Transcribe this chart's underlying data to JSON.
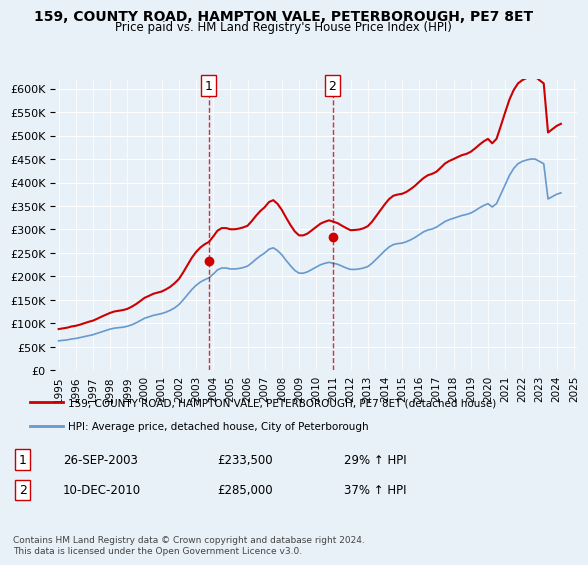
{
  "title": "159, COUNTY ROAD, HAMPTON VALE, PETERBOROUGH, PE7 8ET",
  "subtitle": "Price paid vs. HM Land Registry's House Price Index (HPI)",
  "legend_label_red": "159, COUNTY ROAD, HAMPTON VALE, PETERBOROUGH, PE7 8ET (detached house)",
  "legend_label_blue": "HPI: Average price, detached house, City of Peterborough",
  "annotation1_label": "1",
  "annotation1_date": "26-SEP-2003",
  "annotation1_price": "£233,500",
  "annotation1_hpi": "29% ↑ HPI",
  "annotation2_label": "2",
  "annotation2_date": "10-DEC-2010",
  "annotation2_price": "£285,000",
  "annotation2_hpi": "37% ↑ HPI",
  "footer": "Contains HM Land Registry data © Crown copyright and database right 2024.\nThis data is licensed under the Open Government Licence v3.0.",
  "ylim": [
    0,
    620000
  ],
  "yticks": [
    0,
    50000,
    100000,
    150000,
    200000,
    250000,
    300000,
    350000,
    400000,
    450000,
    500000,
    550000,
    600000
  ],
  "background_color": "#e8f0f8",
  "plot_background": "#e8f0f8",
  "red_color": "#cc0000",
  "blue_color": "#6699cc",
  "vline_color": "#cc0000",
  "sale1_x": 2003.74,
  "sale1_y": 233500,
  "sale2_x": 2010.95,
  "sale2_y": 285000,
  "hpi_data_x": [
    1995.0,
    1995.25,
    1995.5,
    1995.75,
    1996.0,
    1996.25,
    1996.5,
    1996.75,
    1997.0,
    1997.25,
    1997.5,
    1997.75,
    1998.0,
    1998.25,
    1998.5,
    1998.75,
    1999.0,
    1999.25,
    1999.5,
    1999.75,
    2000.0,
    2000.25,
    2000.5,
    2000.75,
    2001.0,
    2001.25,
    2001.5,
    2001.75,
    2002.0,
    2002.25,
    2002.5,
    2002.75,
    2003.0,
    2003.25,
    2003.5,
    2003.75,
    2004.0,
    2004.25,
    2004.5,
    2004.75,
    2005.0,
    2005.25,
    2005.5,
    2005.75,
    2006.0,
    2006.25,
    2006.5,
    2006.75,
    2007.0,
    2007.25,
    2007.5,
    2007.75,
    2008.0,
    2008.25,
    2008.5,
    2008.75,
    2009.0,
    2009.25,
    2009.5,
    2009.75,
    2010.0,
    2010.25,
    2010.5,
    2010.75,
    2011.0,
    2011.25,
    2011.5,
    2011.75,
    2012.0,
    2012.25,
    2012.5,
    2012.75,
    2013.0,
    2013.25,
    2013.5,
    2013.75,
    2014.0,
    2014.25,
    2014.5,
    2014.75,
    2015.0,
    2015.25,
    2015.5,
    2015.75,
    2016.0,
    2016.25,
    2016.5,
    2016.75,
    2017.0,
    2017.25,
    2017.5,
    2017.75,
    2018.0,
    2018.25,
    2018.5,
    2018.75,
    2019.0,
    2019.25,
    2019.5,
    2019.75,
    2020.0,
    2020.25,
    2020.5,
    2020.75,
    2021.0,
    2021.25,
    2021.5,
    2021.75,
    2022.0,
    2022.25,
    2022.5,
    2022.75,
    2023.0,
    2023.25,
    2023.5,
    2023.75,
    2024.0,
    2024.25
  ],
  "hpi_data_y": [
    63000,
    64000,
    65000,
    67000,
    68000,
    70000,
    72000,
    74000,
    76000,
    79000,
    82000,
    85000,
    88000,
    90000,
    91000,
    92000,
    94000,
    97000,
    101000,
    106000,
    111000,
    114000,
    117000,
    119000,
    121000,
    124000,
    128000,
    133000,
    140000,
    150000,
    161000,
    172000,
    181000,
    188000,
    193000,
    197000,
    205000,
    214000,
    218000,
    218000,
    216000,
    216000,
    217000,
    219000,
    222000,
    229000,
    237000,
    244000,
    250000,
    258000,
    261000,
    255000,
    246000,
    234000,
    223000,
    213000,
    207000,
    207000,
    210000,
    215000,
    220000,
    225000,
    228000,
    230000,
    228000,
    226000,
    222000,
    218000,
    215000,
    215000,
    216000,
    218000,
    221000,
    228000,
    237000,
    246000,
    255000,
    263000,
    268000,
    270000,
    271000,
    274000,
    278000,
    283000,
    289000,
    295000,
    299000,
    301000,
    305000,
    311000,
    317000,
    321000,
    324000,
    327000,
    330000,
    332000,
    335000,
    340000,
    346000,
    351000,
    355000,
    348000,
    355000,
    375000,
    395000,
    415000,
    430000,
    440000,
    445000,
    448000,
    450000,
    450000,
    445000,
    440000,
    365000,
    370000,
    375000,
    378000
  ],
  "red_data_x": [
    1995.0,
    1995.25,
    1995.5,
    1995.75,
    1996.0,
    1996.25,
    1996.5,
    1996.75,
    1997.0,
    1997.25,
    1997.5,
    1997.75,
    1998.0,
    1998.25,
    1998.5,
    1998.75,
    1999.0,
    1999.25,
    1999.5,
    1999.75,
    2000.0,
    2000.25,
    2000.5,
    2000.75,
    2001.0,
    2001.25,
    2001.5,
    2001.75,
    2002.0,
    2002.25,
    2002.5,
    2002.75,
    2003.0,
    2003.25,
    2003.5,
    2003.75,
    2004.0,
    2004.25,
    2004.5,
    2004.75,
    2005.0,
    2005.25,
    2005.5,
    2005.75,
    2006.0,
    2006.25,
    2006.5,
    2006.75,
    2007.0,
    2007.25,
    2007.5,
    2007.75,
    2008.0,
    2008.25,
    2008.5,
    2008.75,
    2009.0,
    2009.25,
    2009.5,
    2009.75,
    2010.0,
    2010.25,
    2010.5,
    2010.75,
    2011.0,
    2011.25,
    2011.5,
    2011.75,
    2012.0,
    2012.25,
    2012.5,
    2012.75,
    2013.0,
    2013.25,
    2013.5,
    2013.75,
    2014.0,
    2014.25,
    2014.5,
    2014.75,
    2015.0,
    2015.25,
    2015.5,
    2015.75,
    2016.0,
    2016.25,
    2016.5,
    2016.75,
    2017.0,
    2017.25,
    2017.5,
    2017.75,
    2018.0,
    2018.25,
    2018.5,
    2018.75,
    2019.0,
    2019.25,
    2019.5,
    2019.75,
    2020.0,
    2020.25,
    2020.5,
    2020.75,
    2021.0,
    2021.25,
    2021.5,
    2021.75,
    2022.0,
    2022.25,
    2022.5,
    2022.75,
    2023.0,
    2023.25,
    2023.5,
    2023.75,
    2024.0,
    2024.25
  ],
  "red_data_y": [
    88000,
    89500,
    91000,
    93500,
    95000,
    97500,
    100500,
    103500,
    106000,
    110000,
    114500,
    118500,
    122500,
    125500,
    127000,
    128500,
    131000,
    135500,
    141000,
    147500,
    154500,
    158500,
    163000,
    165500,
    168000,
    172500,
    178000,
    185500,
    194500,
    208500,
    224000,
    239500,
    252000,
    261500,
    268500,
    273500,
    285000,
    297500,
    303000,
    303000,
    300500,
    300500,
    302000,
    304500,
    308000,
    318000,
    329500,
    339500,
    347500,
    358500,
    362500,
    354500,
    341500,
    325000,
    309500,
    296000,
    287500,
    287500,
    291500,
    298500,
    305500,
    312500,
    316500,
    319500,
    316500,
    313500,
    308000,
    303000,
    298500,
    299000,
    300000,
    302500,
    307000,
    316500,
    329000,
    341500,
    354000,
    365000,
    372000,
    374500,
    376000,
    380000,
    386000,
    393000,
    401500,
    409500,
    415500,
    418500,
    423000,
    431500,
    440500,
    446000,
    450000,
    454500,
    458500,
    461000,
    465500,
    472500,
    480500,
    487500,
    493000,
    483500,
    493000,
    520500,
    549000,
    576500,
    597000,
    611000,
    618000,
    622500,
    625500,
    625500,
    618000,
    611000,
    506500,
    513500,
    520500,
    525000
  ],
  "xticks": [
    1995,
    1996,
    1997,
    1998,
    1999,
    2000,
    2001,
    2002,
    2003,
    2004,
    2005,
    2006,
    2007,
    2008,
    2009,
    2010,
    2011,
    2012,
    2013,
    2014,
    2015,
    2016,
    2017,
    2018,
    2019,
    2020,
    2021,
    2022,
    2023,
    2024,
    2025
  ]
}
